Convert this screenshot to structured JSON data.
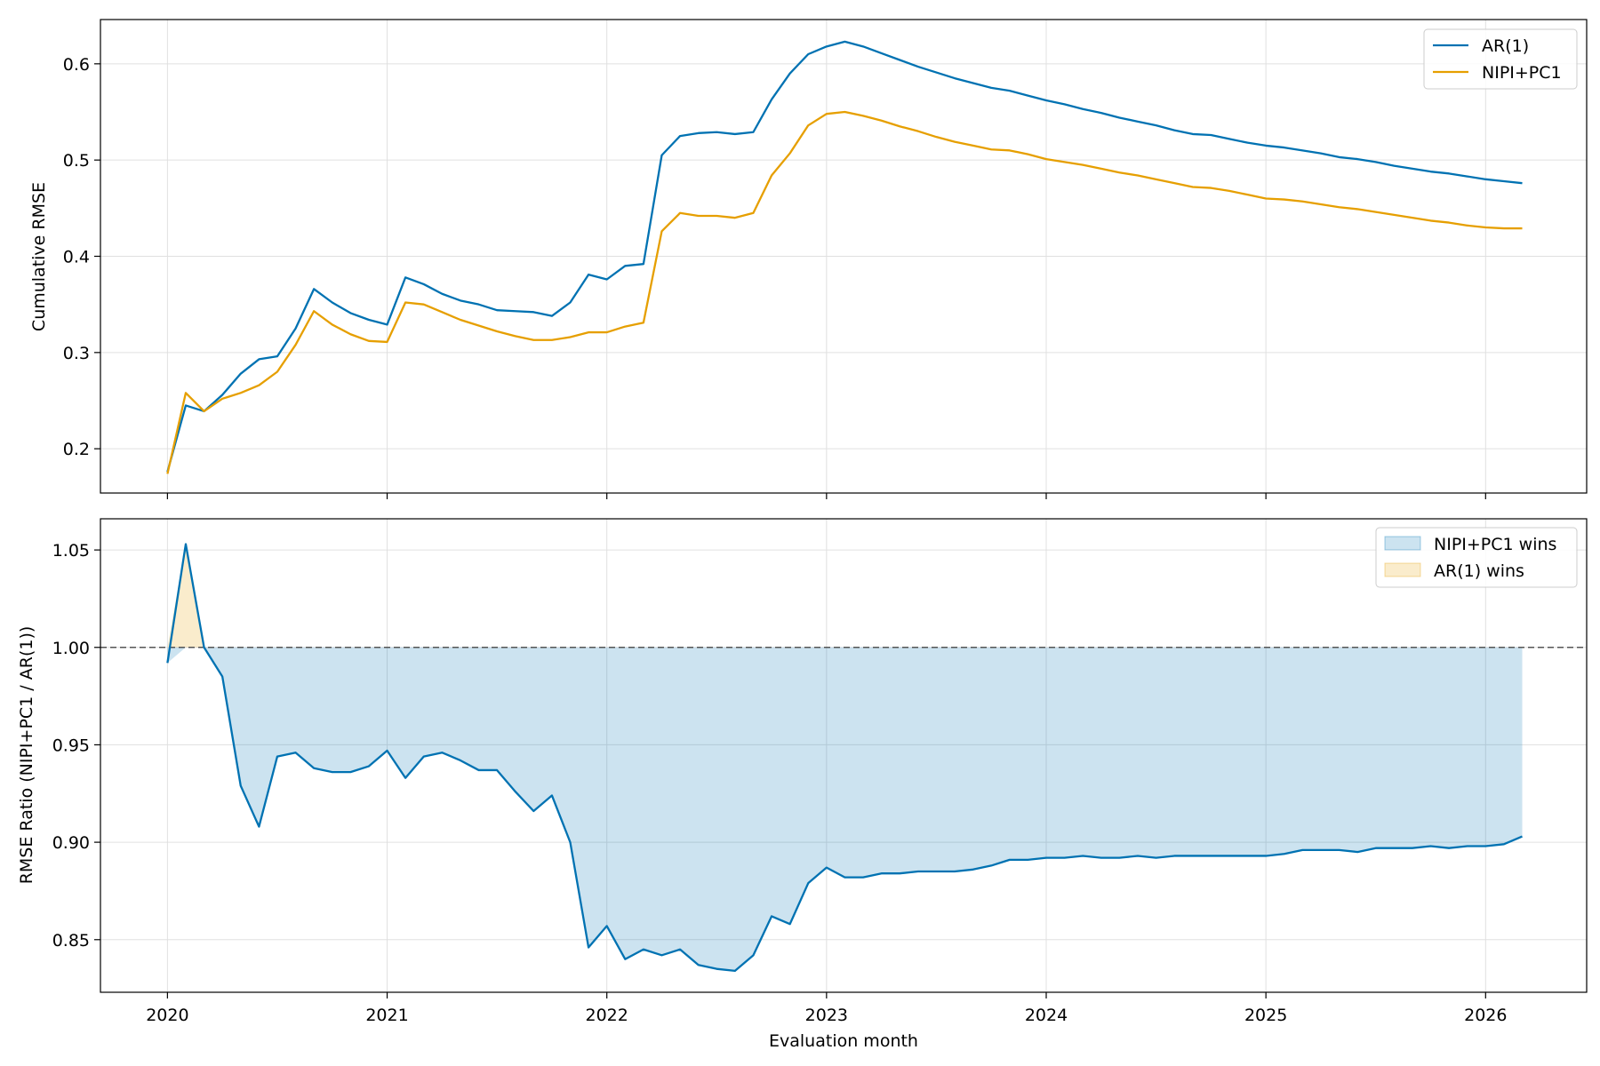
{
  "chart_data": [
    {
      "type": "line",
      "panel": "top",
      "title": "",
      "xlabel": "",
      "ylabel": "Cumulative RMSE",
      "ylim": [
        0.154,
        0.646
      ],
      "yticks": [
        0.2,
        0.3,
        0.4,
        0.5,
        0.6
      ],
      "ytick_labels": [
        "0.2",
        "0.3",
        "0.4",
        "0.5",
        "0.6"
      ],
      "grid": true,
      "legend_position": "top-right",
      "x": [
        2020.0,
        2020.0833,
        2020.1667,
        2020.25,
        2020.3333,
        2020.4167,
        2020.5,
        2020.5833,
        2020.6667,
        2020.75,
        2020.8333,
        2020.9167,
        2021.0,
        2021.0833,
        2021.1667,
        2021.25,
        2021.3333,
        2021.4167,
        2021.5,
        2021.5833,
        2021.6667,
        2021.75,
        2021.8333,
        2021.9167,
        2022.0,
        2022.0833,
        2022.1667,
        2022.25,
        2022.3333,
        2022.4167,
        2022.5,
        2022.5833,
        2022.6667,
        2022.75,
        2022.8333,
        2022.9167,
        2023.0,
        2023.0833,
        2023.1667,
        2023.25,
        2023.3333,
        2023.4167,
        2023.5,
        2023.5833,
        2023.6667,
        2023.75,
        2023.8333,
        2023.9167,
        2024.0,
        2024.0833,
        2024.1667,
        2024.25,
        2024.3333,
        2024.4167,
        2024.5,
        2024.5833,
        2024.6667,
        2024.75,
        2024.8333,
        2024.9167,
        2025.0,
        2025.0833,
        2025.1667,
        2025.25,
        2025.3333,
        2025.4167,
        2025.5,
        2025.5833,
        2025.6667,
        2025.75,
        2025.8333,
        2025.9167,
        2026.0,
        2026.0833,
        2026.1667
      ],
      "series": [
        {
          "name": "AR(1)",
          "color": "#0072b2",
          "values": [
            0.176,
            0.245,
            0.239,
            0.256,
            0.278,
            0.293,
            0.296,
            0.325,
            0.366,
            0.352,
            0.341,
            0.334,
            0.329,
            0.378,
            0.371,
            0.361,
            0.354,
            0.35,
            0.344,
            0.343,
            0.342,
            0.338,
            0.352,
            0.381,
            0.376,
            0.39,
            0.392,
            0.505,
            0.525,
            0.528,
            0.529,
            0.527,
            0.529,
            0.563,
            0.59,
            0.61,
            0.618,
            0.623,
            0.618,
            0.611,
            0.604,
            0.597,
            0.591,
            0.585,
            0.58,
            0.575,
            0.572,
            0.567,
            0.562,
            0.558,
            0.553,
            0.549,
            0.544,
            0.54,
            0.536,
            0.531,
            0.527,
            0.526,
            0.522,
            0.518,
            0.515,
            0.513,
            0.51,
            0.507,
            0.503,
            0.501,
            0.498,
            0.494,
            0.491,
            0.488,
            0.486,
            0.483,
            0.48,
            0.478,
            0.476
          ]
        },
        {
          "name": "NIPI+PC1",
          "color": "#e69f00",
          "values": [
            0.174,
            0.258,
            0.239,
            0.252,
            0.258,
            0.266,
            0.28,
            0.308,
            0.343,
            0.329,
            0.319,
            0.312,
            0.311,
            0.352,
            0.35,
            0.342,
            0.334,
            0.328,
            0.322,
            0.317,
            0.313,
            0.313,
            0.316,
            0.321,
            0.321,
            0.327,
            0.331,
            0.426,
            0.445,
            0.442,
            0.442,
            0.44,
            0.445,
            0.484,
            0.507,
            0.536,
            0.548,
            0.55,
            0.546,
            0.541,
            0.535,
            0.53,
            0.524,
            0.519,
            0.515,
            0.511,
            0.51,
            0.506,
            0.501,
            0.498,
            0.495,
            0.491,
            0.487,
            0.484,
            0.48,
            0.476,
            0.472,
            0.471,
            0.468,
            0.464,
            0.46,
            0.459,
            0.457,
            0.454,
            0.451,
            0.449,
            0.446,
            0.443,
            0.44,
            0.437,
            0.435,
            0.432,
            0.43,
            0.429,
            0.429
          ]
        }
      ]
    },
    {
      "type": "area",
      "panel": "bottom",
      "title": "",
      "xlabel": "Evaluation month",
      "ylabel": "RMSE Ratio (NIPI+PC1 / AR(1))",
      "ylim": [
        0.823,
        1.066
      ],
      "yticks": [
        0.85,
        0.9,
        0.95,
        1.0,
        1.05
      ],
      "ytick_labels": [
        "0.85",
        "0.90",
        "0.95",
        "1.00",
        "1.05"
      ],
      "xlim": [
        2019.695,
        2026.46
      ],
      "xticks": [
        2020,
        2021,
        2022,
        2023,
        2024,
        2025,
        2026
      ],
      "xtick_labels": [
        "2020",
        "2021",
        "2022",
        "2023",
        "2024",
        "2025",
        "2026"
      ],
      "reference_line": 1.0,
      "grid": true,
      "legend_position": "top-right",
      "line_color": "#0072b2",
      "series_name": "RMSE Ratio",
      "fill_series": [
        {
          "name": "NIPI+PC1 wins",
          "color": "#0072b2",
          "opacity": 0.2,
          "condition": "below 1.00"
        },
        {
          "name": "AR(1) wins",
          "color": "#e69f00",
          "opacity": 0.2,
          "condition": "above 1.00"
        }
      ],
      "x": [
        2020.0,
        2020.0833,
        2020.1667,
        2020.25,
        2020.3333,
        2020.4167,
        2020.5,
        2020.5833,
        2020.6667,
        2020.75,
        2020.8333,
        2020.9167,
        2021.0,
        2021.0833,
        2021.1667,
        2021.25,
        2021.3333,
        2021.4167,
        2021.5,
        2021.5833,
        2021.6667,
        2021.75,
        2021.8333,
        2021.9167,
        2022.0,
        2022.0833,
        2022.1667,
        2022.25,
        2022.3333,
        2022.4167,
        2022.5,
        2022.5833,
        2022.6667,
        2022.75,
        2022.8333,
        2022.9167,
        2023.0,
        2023.0833,
        2023.1667,
        2023.25,
        2023.3333,
        2023.4167,
        2023.5,
        2023.5833,
        2023.6667,
        2023.75,
        2023.8333,
        2023.9167,
        2024.0,
        2024.0833,
        2024.1667,
        2024.25,
        2024.3333,
        2024.4167,
        2024.5,
        2024.5833,
        2024.6667,
        2024.75,
        2024.8333,
        2024.9167,
        2025.0,
        2025.0833,
        2025.1667,
        2025.25,
        2025.3333,
        2025.4167,
        2025.5,
        2025.5833,
        2025.6667,
        2025.75,
        2025.8333,
        2025.9167,
        2026.0,
        2026.0833,
        2026.1667
      ],
      "values": [
        0.992,
        1.053,
        1.0,
        0.985,
        0.929,
        0.908,
        0.944,
        0.946,
        0.938,
        0.936,
        0.936,
        0.939,
        0.947,
        0.933,
        0.944,
        0.946,
        0.942,
        0.937,
        0.937,
        0.926,
        0.916,
        0.924,
        0.9,
        0.846,
        0.857,
        0.84,
        0.845,
        0.842,
        0.845,
        0.837,
        0.835,
        0.834,
        0.842,
        0.862,
        0.858,
        0.879,
        0.887,
        0.882,
        0.882,
        0.884,
        0.884,
        0.885,
        0.885,
        0.885,
        0.886,
        0.888,
        0.891,
        0.891,
        0.892,
        0.892,
        0.893,
        0.892,
        0.892,
        0.893,
        0.892,
        0.893,
        0.893,
        0.893,
        0.893,
        0.893,
        0.893,
        0.894,
        0.896,
        0.896,
        0.896,
        0.895,
        0.897,
        0.897,
        0.897,
        0.898,
        0.897,
        0.898,
        0.898,
        0.899,
        0.903
      ]
    }
  ]
}
